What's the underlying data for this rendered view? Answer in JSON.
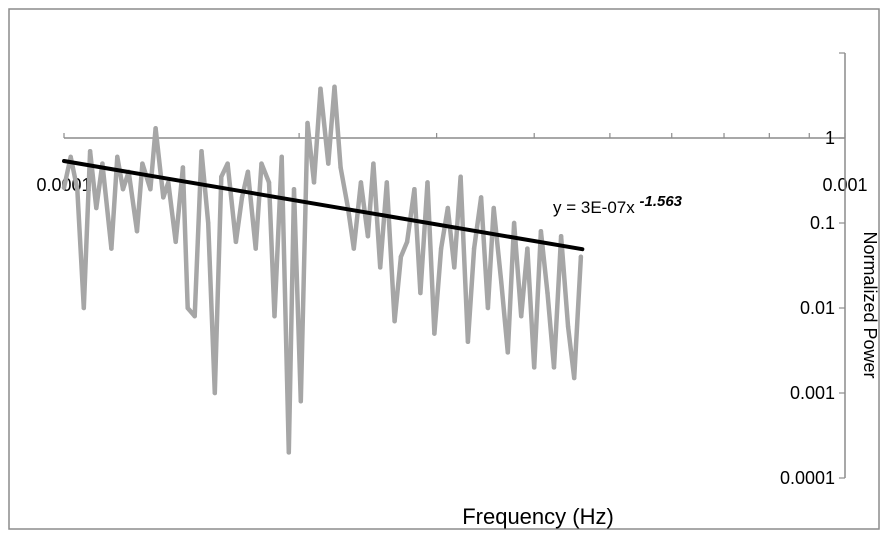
{
  "chart_data": {
    "type": "line",
    "xlabel": "Frequency (Hz)",
    "ylabel": "Normalized Power",
    "x_scale": "log",
    "y_scale": "log",
    "xlim": [
      0.0001,
      0.001
    ],
    "ylim": [
      0.0001,
      10
    ],
    "x_ticks": [
      {
        "value": 0.0001,
        "label": "0.0001"
      },
      {
        "value": 0.001,
        "label": "0.001"
      }
    ],
    "y_ticks": [
      {
        "value": 1,
        "label": "1"
      },
      {
        "value": 0.1,
        "label": "0.1"
      },
      {
        "value": 0.01,
        "label": "0.01"
      },
      {
        "value": 0.001,
        "label": "0.001"
      },
      {
        "value": 0.0001,
        "label": "0.0001"
      }
    ],
    "trendline": {
      "label_main": "y = 3E-07x",
      "label_exponent": "-1.563",
      "coefficient": 3e-07,
      "exponent": -1.563,
      "x_range": [
        0.0001,
        0.000461
      ],
      "color": "#000000"
    },
    "series": [
      {
        "color": "#a6a6a6",
        "x": [
          0.0001,
          0.000102,
          0.000104,
          0.000106,
          0.000108,
          0.00011,
          0.000112,
          0.000115,
          0.000117,
          0.000119,
          0.000121,
          0.000124,
          0.000126,
          0.000129,
          0.000131,
          0.000134,
          0.000136,
          0.000139,
          0.000142,
          0.000144,
          0.000147,
          0.00015,
          0.000153,
          0.000156,
          0.000159,
          0.000162,
          0.000166,
          0.000169,
          0.000172,
          0.000176,
          0.000179,
          0.000183,
          0.000186,
          0.00019,
          0.000194,
          0.000197,
          0.000201,
          0.000205,
          0.000209,
          0.000213,
          0.000218,
          0.000222,
          0.000226,
          0.000231,
          0.000235,
          0.00024,
          0.000245,
          0.000249,
          0.000254,
          0.000259,
          0.000265,
          0.00027,
          0.000275,
          0.000281,
          0.000286,
          0.000292,
          0.000298,
          0.000304,
          0.00031,
          0.000316,
          0.000322,
          0.000329,
          0.000335,
          0.000342,
          0.000349,
          0.000355,
          0.000363,
          0.00037,
          0.000377,
          0.000385,
          0.000392,
          0.0004,
          0.000408,
          0.000416,
          0.000424,
          0.000433,
          0.000442,
          0.00045,
          0.000459
        ],
        "y": [
          0.26,
          0.6,
          0.25,
          0.01,
          0.7,
          0.15,
          0.5,
          0.05,
          0.6,
          0.25,
          0.4,
          0.08,
          0.5,
          0.25,
          1.3,
          0.2,
          0.3,
          0.06,
          0.45,
          0.01,
          0.008,
          0.7,
          0.1,
          0.001,
          0.35,
          0.5,
          0.06,
          0.2,
          0.4,
          0.05,
          0.5,
          0.3,
          0.008,
          0.6,
          0.0002,
          0.25,
          0.0008,
          1.5,
          0.3,
          3.8,
          0.5,
          4,
          0.45,
          0.15,
          0.05,
          0.3,
          0.07,
          0.5,
          0.03,
          0.3,
          0.007,
          0.04,
          0.06,
          0.25,
          0.015,
          0.3,
          0.005,
          0.05,
          0.15,
          0.03,
          0.35,
          0.004,
          0.05,
          0.2,
          0.01,
          0.15,
          0.02,
          0.003,
          0.1,
          0.008,
          0.05,
          0.002,
          0.08,
          0.015,
          0.002,
          0.07,
          0.006,
          0.0015,
          0.04
        ]
      }
    ]
  }
}
